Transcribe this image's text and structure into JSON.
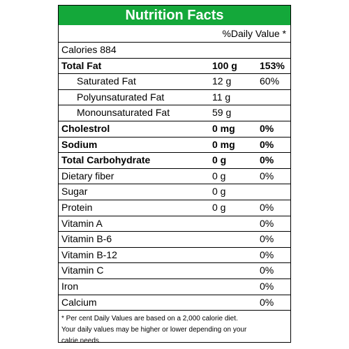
{
  "title": "Nutrition Facts",
  "daily_value_header": "%Daily Value *",
  "calories": "Calories 884",
  "nutrients": [
    {
      "name": "Total Fat",
      "amount": "100 g",
      "dv": "153%"
    },
    {
      "name": "Saturated Fat",
      "amount": "12 g",
      "dv": "60%"
    },
    {
      "name": "Polyunsaturated Fat",
      "amount": "11 g",
      "dv": ""
    },
    {
      "name": "Monounsaturated Fat",
      "amount": "59 g",
      "dv": ""
    },
    {
      "name": "Cholestrol",
      "amount": "0 mg",
      "dv": "0%"
    },
    {
      "name": "Sodium",
      "amount": "0 mg",
      "dv": "0%"
    },
    {
      "name": "Total Carbohydrate",
      "amount": "0 g",
      "dv": "0%"
    },
    {
      "name": "Dietary fiber",
      "amount": "0 g",
      "dv": "0%"
    },
    {
      "name": "Sugar",
      "amount": "0 g",
      "dv": ""
    },
    {
      "name": "Protein",
      "amount": "0 g",
      "dv": "0%"
    },
    {
      "name": "Vitamin A",
      "amount": "",
      "dv": "0%"
    },
    {
      "name": "Vitamin B-6",
      "amount": "",
      "dv": "0%"
    },
    {
      "name": "Vitamin B-12",
      "amount": "",
      "dv": "0%"
    },
    {
      "name": "Vitamin C",
      "amount": "",
      "dv": "0%"
    },
    {
      "name": "Iron",
      "amount": "",
      "dv": "0%"
    },
    {
      "name": "Calcium",
      "amount": "",
      "dv": "0%"
    }
  ],
  "footnote": [
    "* Per cent Daily Values are based on a 2,000 calorie diet.",
    "Your daily values may be higher or lower depending on your",
    "calrie needs."
  ],
  "colors": {
    "header_bg": "#14a83a",
    "header_text": "#ffffff"
  }
}
